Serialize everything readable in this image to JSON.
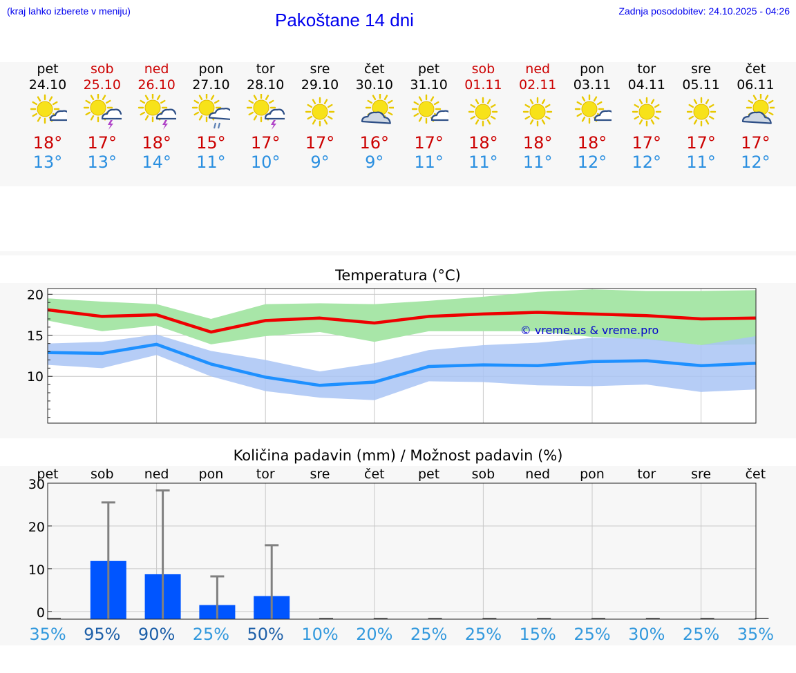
{
  "header": {
    "note": "(kraj lahko izberete v meniju)",
    "title": "Pakoštane 14 dni",
    "update": "Zadnja posodobitev: 24.10.2025 - 04:26"
  },
  "days": [
    {
      "name": "pet",
      "date": "24.10",
      "weekend": false,
      "icon": "sun-cloud-icon",
      "tmax": "18°",
      "tmin": "13°",
      "prob": "35%"
    },
    {
      "name": "sob",
      "date": "25.10",
      "weekend": true,
      "icon": "sun-thunder-icon",
      "tmax": "17°",
      "tmin": "13°",
      "prob": "95%"
    },
    {
      "name": "ned",
      "date": "26.10",
      "weekend": true,
      "icon": "sun-thunder-icon",
      "tmax": "18°",
      "tmin": "14°",
      "prob": "90%"
    },
    {
      "name": "pon",
      "date": "27.10",
      "weekend": false,
      "icon": "sun-rain-icon",
      "tmax": "15°",
      "tmin": "11°",
      "prob": "25%"
    },
    {
      "name": "tor",
      "date": "28.10",
      "weekend": false,
      "icon": "sun-thunder-icon",
      "tmax": "17°",
      "tmin": "10°",
      "prob": "50%"
    },
    {
      "name": "sre",
      "date": "29.10",
      "weekend": false,
      "icon": "sun-icon",
      "tmax": "17°",
      "tmin": "9°",
      "prob": "10%"
    },
    {
      "name": "čet",
      "date": "30.10",
      "weekend": false,
      "icon": "cloud-sun-icon",
      "tmax": "16°",
      "tmin": "9°",
      "prob": "20%"
    },
    {
      "name": "pet",
      "date": "31.10",
      "weekend": false,
      "icon": "sun-cloud-icon",
      "tmax": "17°",
      "tmin": "11°",
      "prob": "25%"
    },
    {
      "name": "sob",
      "date": "01.11",
      "weekend": true,
      "icon": "sun-icon",
      "tmax": "18°",
      "tmin": "11°",
      "prob": "25%"
    },
    {
      "name": "ned",
      "date": "02.11",
      "weekend": true,
      "icon": "sun-icon",
      "tmax": "18°",
      "tmin": "11°",
      "prob": "15%"
    },
    {
      "name": "pon",
      "date": "03.11",
      "weekend": false,
      "icon": "sun-cloud-icon",
      "tmax": "18°",
      "tmin": "12°",
      "prob": "25%"
    },
    {
      "name": "tor",
      "date": "04.11",
      "weekend": false,
      "icon": "sun-icon",
      "tmax": "17°",
      "tmin": "12°",
      "prob": "30%"
    },
    {
      "name": "sre",
      "date": "05.11",
      "weekend": false,
      "icon": "sun-icon",
      "tmax": "17°",
      "tmin": "11°",
      "prob": "25%"
    },
    {
      "name": "čet",
      "date": "06.11",
      "weekend": false,
      "icon": "cloud-sun-icon",
      "tmax": "17°",
      "tmin": "12°",
      "prob": "35%"
    }
  ],
  "colors": {
    "weekend": "#cc0000",
    "tmax": "#cc0000",
    "tmin": "#2a8fe0",
    "max_line": "#ee0000",
    "min_line": "#1e90ff",
    "max_band": "#a8e6a8",
    "min_band": "#a9c4f5",
    "bar": "#0055ff",
    "whisker": "#808080",
    "prob_high": "#1d5fa8",
    "prob_low": "#3399dd"
  },
  "chart_data": [
    {
      "type": "line",
      "title": "Temperatura (°C)",
      "watermark": "© vreme.us & vreme.pro",
      "ylim": [
        4.3,
        20.7
      ],
      "yticks": [
        10,
        15,
        20
      ],
      "grid": true,
      "series": [
        {
          "name": "max",
          "values": [
            18.1,
            17.3,
            17.5,
            15.4,
            16.8,
            17.1,
            16.5,
            17.3,
            17.6,
            17.8,
            17.6,
            17.4,
            17.0,
            17.1
          ],
          "low": [
            16.8,
            15.5,
            16.2,
            13.9,
            14.9,
            15.4,
            14.2,
            15.5,
            15.5,
            15.5,
            14.8,
            14.5,
            13.8,
            13.9
          ],
          "high": [
            19.5,
            19.1,
            18.8,
            17.0,
            18.8,
            18.9,
            18.8,
            19.2,
            19.7,
            20.3,
            20.6,
            20.4,
            20.4,
            20.5
          ]
        },
        {
          "name": "min",
          "values": [
            12.9,
            12.8,
            13.9,
            11.5,
            9.9,
            8.9,
            9.3,
            11.2,
            11.4,
            11.3,
            11.8,
            11.9,
            11.3,
            11.6
          ],
          "low": [
            11.4,
            11.0,
            12.6,
            10.0,
            8.2,
            7.4,
            7.1,
            9.4,
            9.3,
            8.9,
            8.8,
            9.0,
            8.1,
            8.4
          ],
          "high": [
            14.0,
            14.2,
            15.1,
            13.1,
            12.0,
            10.6,
            11.6,
            13.2,
            13.8,
            14.1,
            14.7,
            14.6,
            13.8,
            14.9
          ]
        }
      ]
    },
    {
      "type": "bar",
      "title": "Količina padavin (mm) / Možnost padavin (%)",
      "categories": [
        "pet",
        "sob",
        "ned",
        "pon",
        "tor",
        "sre",
        "čet",
        "pet",
        "sob",
        "ned",
        "pon",
        "tor",
        "sre",
        "čet"
      ],
      "values": [
        0,
        11.8,
        8.7,
        1.5,
        3.6,
        0,
        0,
        0,
        0,
        0,
        0,
        0,
        0,
        0
      ],
      "max_values": [
        0,
        25.5,
        28.3,
        8.2,
        15.5,
        0,
        0,
        0,
        0,
        0,
        0,
        0,
        0,
        0
      ],
      "ylim": [
        -1.8,
        30
      ],
      "yticks": [
        0,
        10,
        20,
        30
      ],
      "probability": [
        "35%",
        "95%",
        "90%",
        "25%",
        "50%",
        "10%",
        "20%",
        "25%",
        "25%",
        "15%",
        "25%",
        "30%",
        "25%",
        "35%"
      ],
      "grid": true
    }
  ]
}
